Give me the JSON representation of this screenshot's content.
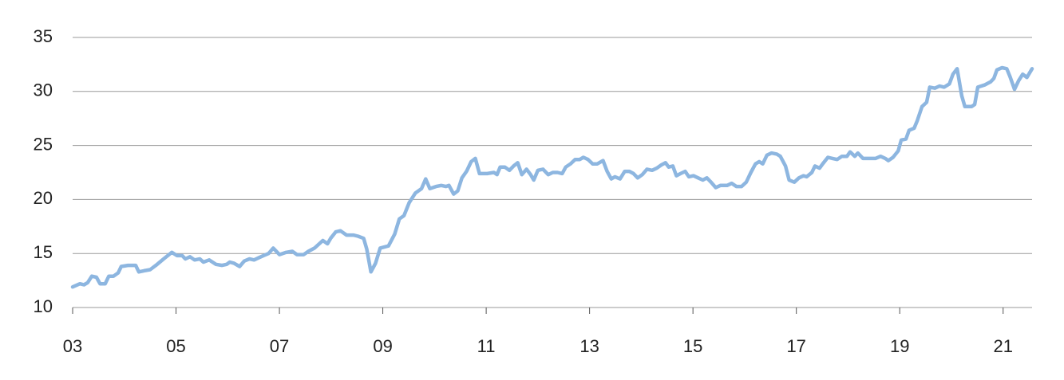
{
  "chart_data": {
    "type": "line",
    "x": [
      2003.0,
      2003.14,
      2003.22,
      2003.29,
      2003.37,
      2003.46,
      2003.53,
      2003.63,
      2003.7,
      2003.79,
      2003.88,
      2003.94,
      2004.07,
      2004.22,
      2004.28,
      2004.38,
      2004.5,
      2004.61,
      2004.76,
      2004.92,
      2005.02,
      2005.12,
      2005.18,
      2005.27,
      2005.36,
      2005.46,
      2005.53,
      2005.64,
      2005.77,
      2005.89,
      2005.98,
      2006.04,
      2006.12,
      2006.23,
      2006.32,
      2006.42,
      2006.51,
      2006.6,
      2006.69,
      2006.79,
      2006.88,
      2007.0,
      2007.13,
      2007.25,
      2007.34,
      2007.47,
      2007.56,
      2007.68,
      2007.84,
      2007.93,
      2007.99,
      2008.09,
      2008.18,
      2008.3,
      2008.43,
      2008.52,
      2008.63,
      2008.69,
      2008.77,
      2008.86,
      2008.95,
      2009.11,
      2009.23,
      2009.32,
      2009.41,
      2009.51,
      2009.63,
      2009.75,
      2009.83,
      2009.91,
      2010.03,
      2010.13,
      2010.22,
      2010.28,
      2010.37,
      2010.45,
      2010.53,
      2010.62,
      2010.71,
      2010.79,
      2010.87,
      2011.02,
      2011.15,
      2011.21,
      2011.27,
      2011.36,
      2011.45,
      2011.53,
      2011.61,
      2011.69,
      2011.78,
      2011.86,
      2011.92,
      2012.0,
      2012.1,
      2012.2,
      2012.29,
      2012.38,
      2012.47,
      2012.54,
      2012.63,
      2012.72,
      2012.81,
      2012.88,
      2012.97,
      2013.06,
      2013.15,
      2013.26,
      2013.34,
      2013.42,
      2013.49,
      2013.59,
      2013.68,
      2013.77,
      2013.85,
      2013.93,
      2014.02,
      2014.11,
      2014.21,
      2014.3,
      2014.39,
      2014.47,
      2014.53,
      2014.61,
      2014.68,
      2014.76,
      2014.85,
      2014.92,
      2015.01,
      2015.1,
      2015.19,
      2015.27,
      2015.35,
      2015.44,
      2015.53,
      2015.66,
      2015.75,
      2015.84,
      2015.94,
      2016.03,
      2016.12,
      2016.21,
      2016.28,
      2016.35,
      2016.43,
      2016.52,
      2016.62,
      2016.69,
      2016.79,
      2016.86,
      2016.96,
      2017.05,
      2017.14,
      2017.2,
      2017.3,
      2017.36,
      2017.45,
      2017.51,
      2017.61,
      2017.7,
      2017.79,
      2017.88,
      2017.98,
      2018.04,
      2018.13,
      2018.19,
      2018.29,
      2018.41,
      2018.53,
      2018.63,
      2018.72,
      2018.78,
      2018.87,
      2018.97,
      2019.03,
      2019.12,
      2019.18,
      2019.28,
      2019.34,
      2019.43,
      2019.52,
      2019.58,
      2019.68,
      2019.77,
      2019.86,
      2019.96,
      2020.03,
      2020.11,
      2020.2,
      2020.26,
      2020.39,
      2020.45,
      2020.51,
      2020.64,
      2020.76,
      2020.82,
      2020.88,
      2020.98,
      2021.07,
      2021.13,
      2021.22,
      2021.3,
      2021.38,
      2021.46,
      2021.56
    ],
    "series": [
      {
        "color": "#8db6e0",
        "values": [
          11.9,
          12.2,
          12.1,
          12.3,
          12.9,
          12.8,
          12.2,
          12.2,
          12.9,
          12.9,
          13.2,
          13.8,
          13.9,
          13.9,
          13.3,
          13.4,
          13.5,
          13.9,
          14.5,
          15.1,
          14.8,
          14.8,
          14.5,
          14.7,
          14.4,
          14.5,
          14.2,
          14.4,
          14.0,
          13.9,
          14.0,
          14.2,
          14.1,
          13.8,
          14.3,
          14.5,
          14.4,
          14.6,
          14.8,
          15.0,
          15.5,
          14.9,
          15.1,
          15.2,
          14.9,
          14.9,
          15.2,
          15.5,
          16.2,
          15.9,
          16.4,
          17.0,
          17.1,
          16.7,
          16.7,
          16.6,
          16.4,
          15.4,
          13.3,
          14.1,
          15.5,
          15.7,
          16.8,
          18.2,
          18.5,
          19.7,
          20.6,
          21.0,
          21.9,
          21.0,
          21.2,
          21.3,
          21.2,
          21.3,
          20.5,
          20.8,
          22.0,
          22.6,
          23.5,
          23.8,
          22.4,
          22.4,
          22.5,
          22.3,
          23.0,
          23.0,
          22.7,
          23.1,
          23.4,
          22.3,
          22.8,
          22.3,
          21.8,
          22.7,
          22.8,
          22.3,
          22.5,
          22.5,
          22.4,
          23.0,
          23.3,
          23.7,
          23.7,
          23.9,
          23.7,
          23.3,
          23.3,
          23.6,
          22.6,
          21.9,
          22.1,
          21.9,
          22.6,
          22.6,
          22.4,
          22.0,
          22.3,
          22.8,
          22.7,
          22.9,
          23.2,
          23.4,
          23.0,
          23.1,
          22.2,
          22.4,
          22.6,
          22.1,
          22.2,
          22.0,
          21.8,
          22.0,
          21.6,
          21.1,
          21.3,
          21.3,
          21.5,
          21.2,
          21.2,
          21.6,
          22.5,
          23.3,
          23.5,
          23.3,
          24.1,
          24.3,
          24.2,
          24.0,
          23.1,
          21.8,
          21.6,
          22.0,
          22.2,
          22.1,
          22.5,
          23.1,
          22.9,
          23.3,
          23.9,
          23.8,
          23.7,
          24.0,
          24.0,
          24.4,
          24.0,
          24.3,
          23.8,
          23.8,
          23.8,
          24.0,
          23.8,
          23.6,
          23.9,
          24.5,
          25.5,
          25.6,
          26.4,
          26.6,
          27.3,
          28.6,
          29.0,
          30.4,
          30.3,
          30.5,
          30.4,
          30.7,
          31.6,
          32.1,
          29.6,
          28.6,
          28.6,
          28.8,
          30.4,
          30.6,
          30.9,
          31.2,
          32.0,
          32.2,
          32.1,
          31.4,
          30.2,
          31.0,
          31.6,
          31.3,
          32.1
        ]
      }
    ],
    "xlim": [
      2003,
      2021.56
    ],
    "xticks": [
      {
        "value": 2003,
        "label": "03"
      },
      {
        "value": 2005,
        "label": "05"
      },
      {
        "value": 2007,
        "label": "07"
      },
      {
        "value": 2009,
        "label": "09"
      },
      {
        "value": 2011,
        "label": "11"
      },
      {
        "value": 2013,
        "label": "13"
      },
      {
        "value": 2015,
        "label": "15"
      },
      {
        "value": 2017,
        "label": "17"
      },
      {
        "value": 2019,
        "label": "19"
      },
      {
        "value": 2021,
        "label": "21"
      }
    ],
    "ylim": [
      10,
      35
    ],
    "yticks": [
      10,
      15,
      20,
      25,
      30,
      35
    ],
    "grid": true
  }
}
